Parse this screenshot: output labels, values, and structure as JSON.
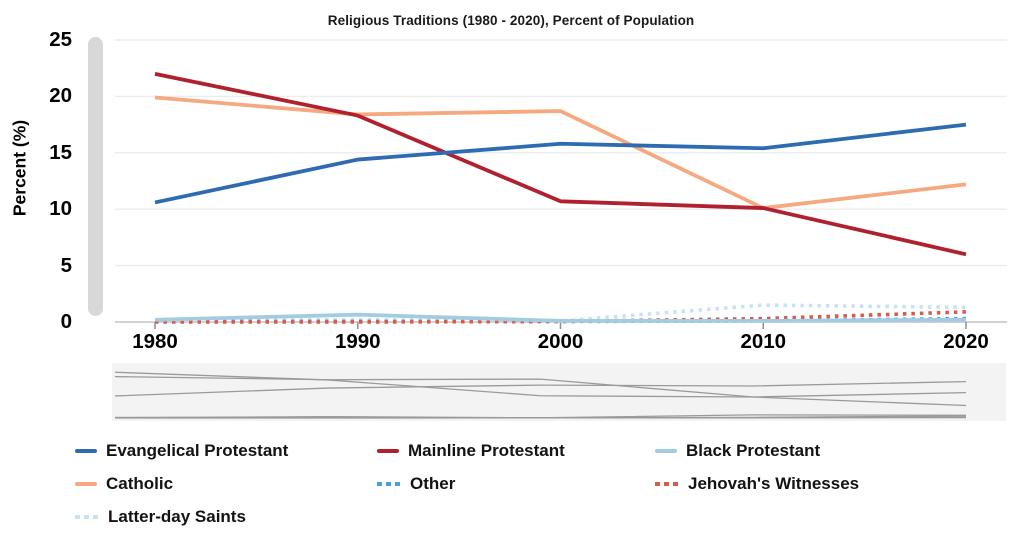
{
  "chart_data": {
    "type": "line",
    "title": "Religious Traditions (1980 - 2020), Percent of Population",
    "xlabel": "",
    "ylabel": "Percent (%)",
    "x": [
      1980,
      1990,
      2000,
      2010,
      2020
    ],
    "ylim": [
      0,
      25
    ],
    "grid": "horizontal",
    "legend_position": "bottom",
    "series": [
      {
        "name": "Evangelical Protestant",
        "color": "#2e6bb1",
        "style": "solid",
        "values": [
          10.6,
          14.4,
          15.8,
          15.4,
          17.5
        ]
      },
      {
        "name": "Mainline Protestant",
        "color": "#b1202f",
        "style": "solid",
        "values": [
          22.0,
          18.3,
          10.7,
          10.1,
          6.0
        ]
      },
      {
        "name": "Black Protestant",
        "color": "#a3cce3",
        "style": "solid",
        "values": [
          0.2,
          0.65,
          0.1,
          0.1,
          0.2
        ]
      },
      {
        "name": "Catholic",
        "color": "#f5a981",
        "style": "solid",
        "values": [
          19.9,
          18.4,
          18.7,
          10.1,
          12.2
        ]
      },
      {
        "name": "Other",
        "color": "#4aa0d5",
        "style": "dashed",
        "values": [
          0.05,
          0.05,
          0.05,
          0.1,
          0.3
        ]
      },
      {
        "name": "Jehovah's Witnesses",
        "color": "#d9594a",
        "style": "dashed",
        "values": [
          0.0,
          0.0,
          0.05,
          0.3,
          0.9
        ]
      },
      {
        "name": "Latter-day Saints",
        "color": "#c8e2f4",
        "style": "dashed",
        "values": [
          0.2,
          0.2,
          0.1,
          1.5,
          1.3
        ]
      }
    ]
  },
  "y_axis": {
    "label": "Percent (%)",
    "tick_labels": [
      "25",
      "20",
      "15",
      "10",
      "5",
      "0"
    ]
  },
  "x_axis": {
    "tick_labels": [
      "1980",
      "1990",
      "2000",
      "2010",
      "2020"
    ]
  },
  "colors": {
    "gridline": "#ececec",
    "axis_line": "#c4c4c4",
    "tick_mark": "#8f8f8f",
    "scrollbar": "#d8d8d8",
    "minimap_bg": "#f3f3f3",
    "minimap_line": "#9a9a9a",
    "text": "#000000"
  }
}
